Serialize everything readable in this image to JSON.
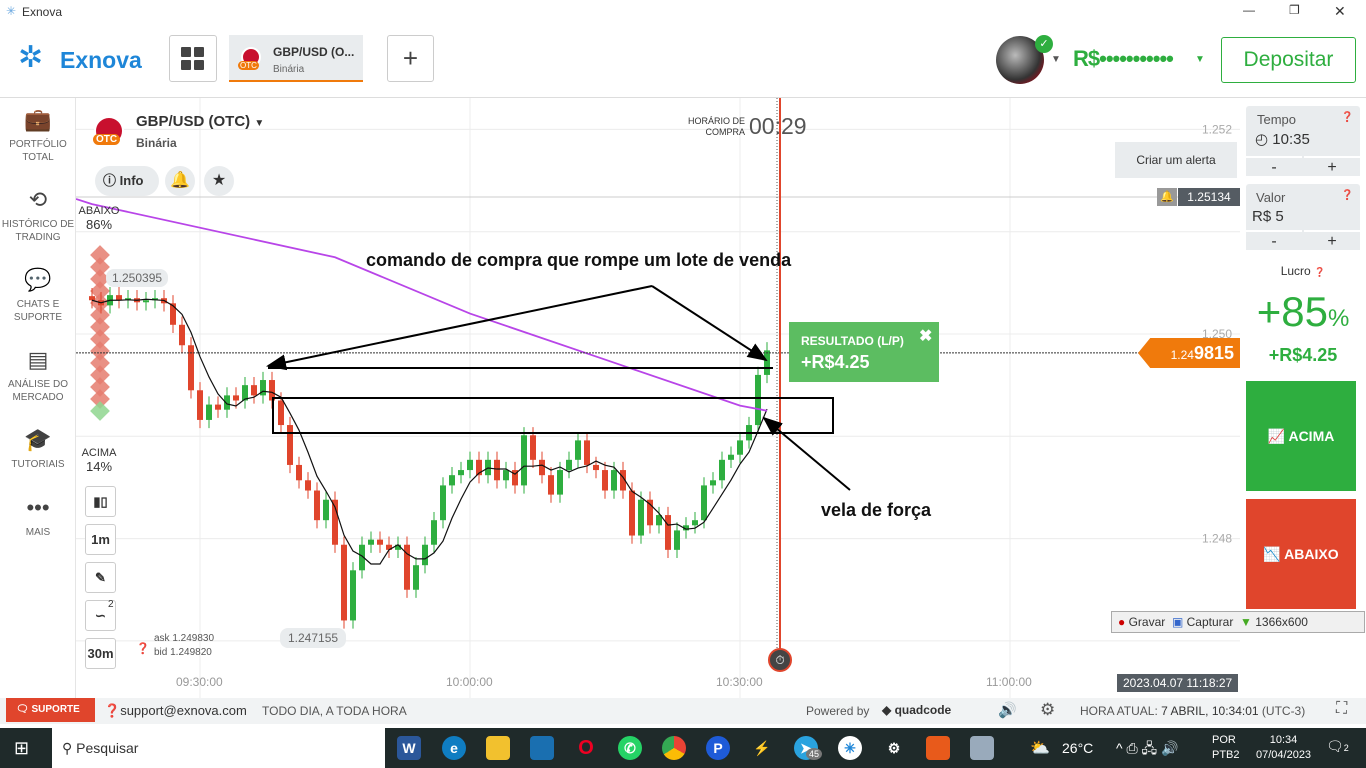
{
  "window": {
    "title": "Exnova",
    "minimize": "—",
    "maximize": "❐",
    "close": "✕"
  },
  "header": {
    "logo": "Exnova",
    "asset_tab": {
      "name": "GBP/USD (O...",
      "type": "Binária",
      "badge": "OTC"
    },
    "add_tab": "+",
    "balance": "R$•••••••••••",
    "deposit": "Depositar"
  },
  "sidebar": {
    "items": [
      {
        "label": "PORTFÓLIO TOTAL",
        "icon": "briefcase-icon"
      },
      {
        "label": "HISTÓRICO DE TRADING",
        "icon": "history-icon"
      },
      {
        "label": "CHATS E SUPORTE",
        "icon": "chat-icon"
      },
      {
        "label": "ANÁLISE DO MERCADO",
        "icon": "news-icon"
      },
      {
        "label": "TUTORIAIS",
        "icon": "graduation-cap-icon"
      },
      {
        "label": "MAIS",
        "icon": "more-icon"
      }
    ]
  },
  "asset": {
    "name": "GBP/USD (OTC)",
    "type": "Binária",
    "badge": "OTC",
    "info": "Info"
  },
  "chart": {
    "purchase_label_1": "HORÁRIO DE",
    "purchase_label_2": "COMPRA",
    "purchase_timer": "00:29",
    "alert_tooltip": "Criar um alerta",
    "alert_price": "1.25134",
    "down_label": "ABAIXO",
    "down_pct": "86%",
    "up_label": "ACIMA",
    "up_pct": "14%",
    "high_label": "1.250395",
    "low_label": "1.247155",
    "ask": "ask 1.249830",
    "bid": "bid 1.249820",
    "current_price_prefix": "1.24",
    "current_price_main": "9815",
    "y_ticks": [
      "1.252",
      "1.250",
      "1.248"
    ],
    "x_ticks": [
      "09:30:00",
      "10:00:00",
      "10:30:00",
      "11:00:00"
    ],
    "crosshair_time": "2023.04.07 11:18:27",
    "result_title": "RESULTADO (L/P)",
    "result_value": "+R$4.25",
    "tools": {
      "timeframe": "1m",
      "period": "30m",
      "indicator_count": "2"
    },
    "annotations": {
      "top": "comando de compra que rompe um lote de venda",
      "bottom": "vela de força"
    },
    "colors": {
      "up": "#2eae3f",
      "down": "#e0452c",
      "ma_fast": "#111111",
      "ma_slow": "#b845e8",
      "expiry": "#e0452c"
    }
  },
  "chart_data": {
    "type": "candlestick",
    "interval": "1m",
    "start_time": "09:18",
    "closes": [
      1.25033,
      1.25028,
      1.25038,
      1.25033,
      1.25035,
      1.25031,
      1.25033,
      1.25035,
      1.2503,
      1.25009,
      1.24989,
      1.24945,
      1.24916,
      1.24931,
      1.24926,
      1.2494,
      1.24935,
      1.2495,
      1.2494,
      1.24955,
      1.24935,
      1.24911,
      1.24872,
      1.24857,
      1.24847,
      1.24818,
      1.24838,
      1.24794,
      1.2472,
      1.24769,
      1.24794,
      1.24799,
      1.24794,
      1.24789,
      1.24794,
      1.2475,
      1.24774,
      1.24794,
      1.24818,
      1.24852,
      1.24862,
      1.24867,
      1.24877,
      1.24862,
      1.24877,
      1.24857,
      1.24867,
      1.24852,
      1.24901,
      1.24877,
      1.24862,
      1.24843,
      1.24867,
      1.24877,
      1.24896,
      1.24872,
      1.24867,
      1.24847,
      1.24867,
      1.24847,
      1.24803,
      1.24838,
      1.24813,
      1.24823,
      1.24789,
      1.24808,
      1.24813,
      1.24818,
      1.24852,
      1.24857,
      1.24877,
      1.24882,
      1.24896,
      1.24911,
      1.2496,
      1.24984
    ],
    "ma_slow": [
      [
        "09:18",
        1.25127
      ],
      [
        "09:45",
        1.25075
      ],
      [
        "10:00",
        1.2502
      ],
      [
        "10:15",
        1.24975
      ],
      [
        "10:30",
        1.2493
      ],
      [
        "10:33",
        1.24925
      ]
    ],
    "ylim": [
      1.2468,
      1.2533
    ]
  },
  "trade": {
    "time_label": "Tempo",
    "time_value": "10:35",
    "amount_label": "Valor",
    "amount_value": "R$ 5",
    "minus": "-",
    "plus": "+",
    "profit_label": "Lucro",
    "profit_pct": "+85",
    "pct_sign": "%",
    "profit_value": "+R$4.25",
    "call": "ACIMA",
    "put": "ABAIXO"
  },
  "recorder": {
    "record": "Gravar",
    "capture": "Capturar",
    "resolution": "1366x600"
  },
  "footer": {
    "support": "SUPORTE",
    "email": "support@exnova.com",
    "hours": "TODO DIA, A TODA HORA",
    "powered": "Powered by",
    "brand": "quadcode",
    "clock": "HORA ATUAL:",
    "clock_value": "7 ABRIL, 10:34:01",
    "tz": "(UTC-3)"
  },
  "taskbar": {
    "search": "Pesquisar",
    "weather": "26°C",
    "lang1": "POR",
    "lang2": "PTB2",
    "time": "10:34",
    "date": "07/04/2023",
    "notifications": "2",
    "telegram_badge": "45"
  }
}
